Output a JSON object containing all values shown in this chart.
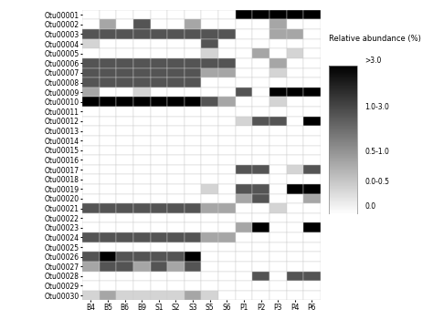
{
  "otus": [
    "Otu00001",
    "Otu00002",
    "Otu00003",
    "Otu00004",
    "Otu00005",
    "Otu00006",
    "Otu00007",
    "Otu00008",
    "Otu00009",
    "Otu00010",
    "Otu00011",
    "Otu00012",
    "Otu00013",
    "Otu00014",
    "Otu00015",
    "Otu00016",
    "Otu00017",
    "Otu00018",
    "Otu00019",
    "Otu00020",
    "Otu00021",
    "Otu00022",
    "Otu00023",
    "Otu00024",
    "Otu00025",
    "Otu00026",
    "Otu00027",
    "Otu00028",
    "Otu00029",
    "Otu00030"
  ],
  "samples": [
    "B4",
    "B5",
    "B6",
    "B9",
    "S1",
    "S2",
    "S3",
    "S5",
    "S6",
    "P1",
    "P2",
    "P3",
    "P4",
    "P6"
  ],
  "data": [
    [
      0.0,
      0.0,
      0.0,
      0.0,
      0.0,
      0.0,
      0.0,
      0.0,
      0.0,
      3.5,
      3.5,
      3.5,
      3.5,
      3.5
    ],
    [
      0.0,
      0.7,
      0.0,
      1.2,
      0.0,
      0.0,
      0.7,
      0.0,
      0.0,
      0.0,
      0.0,
      0.7,
      0.0,
      0.0
    ],
    [
      2.5,
      2.5,
      2.5,
      2.5,
      2.5,
      2.5,
      2.5,
      1.5,
      2.5,
      0.0,
      0.0,
      0.7,
      0.7,
      0.0
    ],
    [
      0.3,
      0.0,
      0.0,
      0.0,
      0.0,
      0.0,
      0.0,
      2.0,
      0.0,
      0.0,
      0.0,
      0.0,
      0.0,
      0.0
    ],
    [
      0.0,
      0.0,
      0.0,
      0.0,
      0.0,
      0.0,
      0.0,
      0.4,
      0.0,
      0.0,
      0.7,
      0.0,
      0.4,
      0.0
    ],
    [
      2.0,
      2.0,
      2.0,
      2.0,
      2.0,
      2.0,
      2.0,
      1.5,
      1.5,
      0.0,
      0.0,
      0.7,
      0.0,
      0.0
    ],
    [
      1.5,
      1.5,
      1.5,
      1.5,
      1.5,
      1.5,
      1.5,
      0.7,
      0.7,
      0.0,
      0.0,
      0.4,
      0.0,
      0.0
    ],
    [
      1.5,
      1.5,
      1.5,
      1.5,
      1.5,
      1.5,
      1.5,
      0.0,
      0.0,
      0.0,
      0.0,
      0.0,
      0.0,
      0.0
    ],
    [
      0.7,
      0.0,
      0.0,
      0.4,
      0.0,
      0.0,
      0.0,
      0.0,
      0.0,
      2.0,
      0.0,
      4.0,
      4.0,
      3.5
    ],
    [
      4.0,
      4.0,
      4.0,
      4.0,
      4.0,
      4.0,
      4.0,
      1.5,
      1.0,
      0.0,
      0.0,
      0.4,
      0.0,
      0.0
    ],
    [
      0.0,
      0.0,
      0.0,
      0.0,
      0.0,
      0.0,
      0.0,
      0.0,
      0.0,
      0.0,
      0.0,
      0.0,
      0.0,
      0.0
    ],
    [
      0.0,
      0.0,
      0.0,
      0.0,
      0.0,
      0.0,
      0.0,
      0.0,
      0.0,
      0.4,
      2.0,
      1.5,
      0.0,
      3.5
    ],
    [
      0.0,
      0.0,
      0.0,
      0.0,
      0.0,
      0.0,
      0.0,
      0.0,
      0.0,
      0.0,
      0.0,
      0.0,
      0.0,
      0.0
    ],
    [
      0.0,
      0.0,
      0.0,
      0.0,
      0.0,
      0.0,
      0.0,
      0.0,
      0.0,
      0.0,
      0.0,
      0.0,
      0.0,
      0.0
    ],
    [
      0.0,
      0.0,
      0.0,
      0.0,
      0.0,
      0.0,
      0.0,
      0.0,
      0.0,
      0.0,
      0.0,
      0.0,
      0.0,
      0.0
    ],
    [
      0.0,
      0.0,
      0.0,
      0.0,
      0.0,
      0.0,
      0.0,
      0.0,
      0.0,
      0.0,
      0.0,
      0.0,
      0.0,
      0.0
    ],
    [
      0.0,
      0.0,
      0.0,
      0.0,
      0.0,
      0.0,
      0.0,
      0.0,
      0.0,
      2.0,
      1.5,
      0.0,
      0.4,
      2.0
    ],
    [
      0.0,
      0.0,
      0.0,
      0.0,
      0.0,
      0.0,
      0.0,
      0.0,
      0.0,
      0.0,
      0.0,
      0.0,
      0.0,
      0.0
    ],
    [
      0.0,
      0.0,
      0.0,
      0.0,
      0.0,
      0.0,
      0.0,
      0.3,
      0.0,
      2.0,
      1.5,
      0.0,
      4.0,
      4.0
    ],
    [
      0.0,
      0.0,
      0.0,
      0.0,
      0.0,
      0.0,
      0.0,
      0.0,
      0.0,
      0.7,
      2.0,
      0.0,
      0.0,
      0.7
    ],
    [
      2.0,
      2.0,
      2.0,
      2.0,
      2.0,
      2.0,
      2.0,
      0.7,
      1.0,
      0.0,
      0.0,
      0.4,
      0.0,
      0.0
    ],
    [
      0.0,
      0.0,
      0.0,
      0.0,
      0.0,
      0.0,
      0.0,
      0.0,
      0.0,
      0.0,
      0.0,
      0.0,
      0.0,
      0.0
    ],
    [
      0.0,
      0.0,
      0.0,
      0.0,
      0.0,
      0.0,
      0.0,
      0.0,
      0.0,
      0.7,
      4.0,
      0.0,
      0.0,
      3.5
    ],
    [
      2.0,
      2.0,
      2.0,
      2.0,
      2.0,
      2.0,
      2.0,
      0.7,
      1.0,
      0.0,
      0.0,
      0.0,
      0.0,
      0.0
    ],
    [
      0.0,
      0.0,
      0.0,
      0.0,
      0.0,
      0.0,
      0.0,
      0.0,
      0.0,
      0.0,
      0.0,
      0.0,
      0.0,
      0.0
    ],
    [
      1.5,
      4.0,
      2.0,
      1.5,
      2.0,
      1.5,
      4.0,
      0.0,
      0.0,
      0.0,
      0.0,
      0.0,
      0.0,
      0.0
    ],
    [
      1.0,
      2.0,
      1.5,
      1.0,
      1.5,
      1.0,
      1.5,
      0.0,
      0.0,
      0.0,
      0.0,
      0.0,
      0.0,
      0.0
    ],
    [
      0.0,
      0.0,
      0.0,
      0.0,
      0.0,
      0.0,
      0.0,
      0.0,
      0.0,
      0.0,
      2.0,
      0.0,
      1.5,
      2.0
    ],
    [
      0.0,
      0.0,
      0.0,
      0.0,
      0.0,
      0.0,
      0.0,
      0.0,
      0.0,
      0.0,
      0.0,
      0.0,
      0.0,
      0.0
    ],
    [
      0.3,
      0.7,
      0.3,
      0.3,
      0.3,
      0.3,
      0.7,
      0.3,
      0.0,
      0.0,
      0.0,
      0.0,
      0.0,
      0.0
    ]
  ],
  "legend_title": "Relative abundance (%)",
  "legend_labels": [
    ">3.0",
    "1.0-3.0",
    "0.5-1.0",
    "0.0-0.5",
    "0.0"
  ],
  "background_color": "#ffffff",
  "tick_fontsize": 5.5,
  "otu_fontsize": 5.5,
  "legend_fontsize": 5.5,
  "legend_title_fontsize": 6.0
}
